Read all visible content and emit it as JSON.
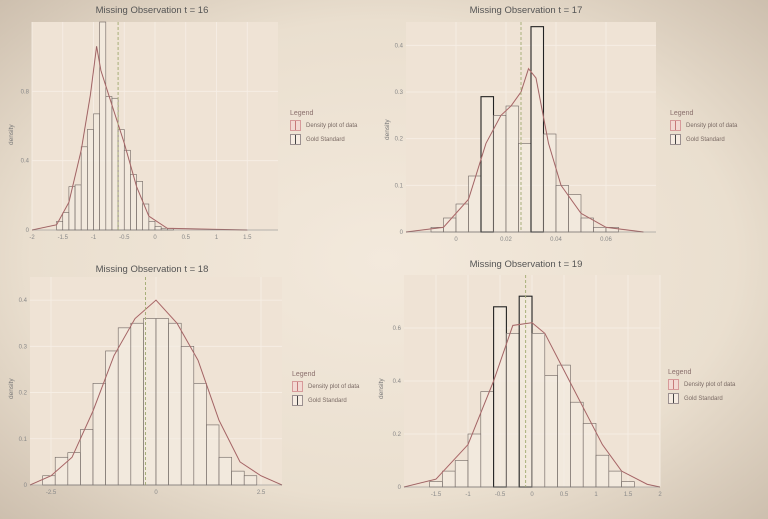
{
  "chart_data": [
    {
      "type": "histogram",
      "title": "Missing Observation t = 16",
      "ylabel": "density",
      "xlim": [
        -2.0,
        2.0
      ],
      "ylim": [
        0,
        1.2
      ],
      "xticks": [
        -2.0,
        -1.5,
        -1.0,
        -0.5,
        0.0,
        0.5,
        1.0,
        1.5
      ],
      "yticks": [
        0.0,
        0.4,
        0.8
      ],
      "bin_edges": [
        -1.6,
        -1.5,
        -1.4,
        -1.3,
        -1.2,
        -1.1,
        -1.0,
        -0.9,
        -0.8,
        -0.7,
        -0.6,
        -0.5,
        -0.4,
        -0.3,
        -0.2,
        -0.1,
        0.0,
        0.1,
        0.2,
        0.3
      ],
      "counts_density": [
        0.05,
        0.1,
        0.25,
        0.26,
        0.48,
        0.58,
        0.67,
        1.2,
        0.77,
        0.76,
        0.58,
        0.46,
        0.32,
        0.28,
        0.15,
        0.05,
        0.02,
        0.01,
        0.01
      ],
      "density_curve": [
        [
          -2.0,
          0.0
        ],
        [
          -1.6,
          0.03
        ],
        [
          -1.4,
          0.16
        ],
        [
          -1.2,
          0.46
        ],
        [
          -1.05,
          0.78
        ],
        [
          -0.95,
          1.06
        ],
        [
          -0.88,
          0.92
        ],
        [
          -0.7,
          0.72
        ],
        [
          -0.5,
          0.5
        ],
        [
          -0.3,
          0.25
        ],
        [
          -0.1,
          0.08
        ],
        [
          0.2,
          0.01
        ],
        [
          1.5,
          0.0
        ]
      ],
      "gold_standard": -0.6,
      "legend": {
        "title": "Legend",
        "entries": [
          "Density plot of data",
          "Gold Standard"
        ]
      }
    },
    {
      "type": "histogram",
      "title": "Missing Observation t = 17",
      "ylabel": "density",
      "xlim": [
        -0.02,
        0.08
      ],
      "ylim": [
        0,
        0.45
      ],
      "xticks": [
        0.0,
        0.02,
        0.04,
        0.06
      ],
      "yticks": [
        0.0,
        0.1,
        0.2,
        0.3,
        0.4
      ],
      "bin_edges": [
        -0.01,
        -0.005,
        0.0,
        0.005,
        0.01,
        0.015,
        0.02,
        0.025,
        0.03,
        0.035,
        0.04,
        0.045,
        0.05,
        0.055,
        0.06,
        0.065
      ],
      "counts_density": [
        0.01,
        0.03,
        0.06,
        0.12,
        0.29,
        0.25,
        0.27,
        0.19,
        0.44,
        0.21,
        0.1,
        0.08,
        0.03,
        0.01,
        0.01
      ],
      "density_curve": [
        [
          -0.02,
          0.0
        ],
        [
          -0.005,
          0.01
        ],
        [
          0.005,
          0.07
        ],
        [
          0.012,
          0.19
        ],
        [
          0.018,
          0.25
        ],
        [
          0.022,
          0.27
        ],
        [
          0.026,
          0.3
        ],
        [
          0.029,
          0.35
        ],
        [
          0.032,
          0.33
        ],
        [
          0.037,
          0.19
        ],
        [
          0.042,
          0.1
        ],
        [
          0.05,
          0.04
        ],
        [
          0.06,
          0.01
        ],
        [
          0.075,
          0.0
        ]
      ],
      "gold_standard": 0.026,
      "legend": {
        "title": "Legend",
        "entries": [
          "Density plot of data",
          "Gold Standard"
        ]
      }
    },
    {
      "type": "histogram",
      "title": "Missing Observation t = 18",
      "ylabel": "density",
      "xlim": [
        -3.0,
        3.0
      ],
      "ylim": [
        0,
        0.45
      ],
      "xticks": [
        -2.5,
        0.0,
        2.5
      ],
      "yticks": [
        0.0,
        0.1,
        0.2,
        0.3,
        0.4
      ],
      "bin_edges": [
        -2.7,
        -2.4,
        -2.1,
        -1.8,
        -1.5,
        -1.2,
        -0.9,
        -0.6,
        -0.3,
        0.0,
        0.3,
        0.6,
        0.9,
        1.2,
        1.5,
        1.8,
        2.1,
        2.4
      ],
      "counts_density": [
        0.02,
        0.06,
        0.07,
        0.12,
        0.22,
        0.29,
        0.34,
        0.35,
        0.36,
        0.36,
        0.35,
        0.3,
        0.22,
        0.13,
        0.06,
        0.03,
        0.02
      ],
      "density_curve": [
        [
          -3.0,
          0.0
        ],
        [
          -2.5,
          0.02
        ],
        [
          -2.0,
          0.06
        ],
        [
          -1.5,
          0.16
        ],
        [
          -1.0,
          0.28
        ],
        [
          -0.5,
          0.36
        ],
        [
          0.0,
          0.4
        ],
        [
          0.5,
          0.35
        ],
        [
          1.0,
          0.27
        ],
        [
          1.5,
          0.14
        ],
        [
          2.0,
          0.05
        ],
        [
          2.5,
          0.02
        ],
        [
          3.0,
          0.0
        ]
      ],
      "gold_standard": -0.25,
      "legend": {
        "title": "Legend",
        "entries": [
          "Density plot of data",
          "Gold Standard"
        ]
      }
    },
    {
      "type": "histogram",
      "title": "Missing Observation t = 19",
      "ylabel": "density",
      "xlim": [
        -2.0,
        2.0
      ],
      "ylim": [
        0,
        0.8
      ],
      "xticks": [
        -1.5,
        -1.0,
        -0.5,
        0.0,
        0.5,
        1.0,
        1.5,
        2.0
      ],
      "yticks": [
        0.0,
        0.2,
        0.4,
        0.6
      ],
      "bin_edges": [
        -1.6,
        -1.4,
        -1.2,
        -1.0,
        -0.8,
        -0.6,
        -0.4,
        -0.2,
        0.0,
        0.2,
        0.4,
        0.6,
        0.8,
        1.0,
        1.2,
        1.4,
        1.6
      ],
      "counts_density": [
        0.02,
        0.06,
        0.1,
        0.2,
        0.36,
        0.68,
        0.58,
        0.72,
        0.58,
        0.42,
        0.46,
        0.32,
        0.24,
        0.12,
        0.06,
        0.02
      ],
      "density_curve": [
        [
          -2.0,
          0.0
        ],
        [
          -1.5,
          0.03
        ],
        [
          -1.0,
          0.16
        ],
        [
          -0.6,
          0.4
        ],
        [
          -0.3,
          0.61
        ],
        [
          0.0,
          0.62
        ],
        [
          0.2,
          0.58
        ],
        [
          0.5,
          0.44
        ],
        [
          0.8,
          0.3
        ],
        [
          1.1,
          0.16
        ],
        [
          1.4,
          0.06
        ],
        [
          1.8,
          0.01
        ],
        [
          2.0,
          0.0
        ]
      ],
      "gold_standard": -0.1,
      "legend": {
        "title": "Legend",
        "entries": [
          "Density plot of data",
          "Gold Standard"
        ]
      }
    }
  ]
}
